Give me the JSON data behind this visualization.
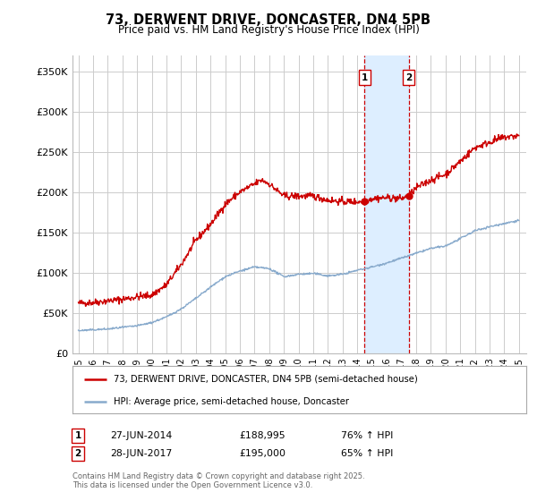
{
  "title": "73, DERWENT DRIVE, DONCASTER, DN4 5PB",
  "subtitle": "Price paid vs. HM Land Registry's House Price Index (HPI)",
  "ylabel_ticks": [
    "£0",
    "£50K",
    "£100K",
    "£150K",
    "£200K",
    "£250K",
    "£300K",
    "£350K"
  ],
  "ytick_values": [
    0,
    50000,
    100000,
    150000,
    200000,
    250000,
    300000,
    350000
  ],
  "ylim": [
    0,
    370000
  ],
  "xlim_start": 1994.6,
  "xlim_end": 2025.5,
  "legend_line1": "73, DERWENT DRIVE, DONCASTER, DN4 5PB (semi-detached house)",
  "legend_line2": "HPI: Average price, semi-detached house, Doncaster",
  "marker1_year": 2014.49,
  "marker1_price": 188995,
  "marker1_label": "1",
  "marker1_date": "27-JUN-2014",
  "marker1_pct": "76% ↑ HPI",
  "marker2_year": 2017.49,
  "marker2_price": 195000,
  "marker2_label": "2",
  "marker2_date": "28-JUN-2017",
  "marker2_pct": "65% ↑ HPI",
  "footnote": "Contains HM Land Registry data © Crown copyright and database right 2025.\nThis data is licensed under the Open Government Licence v3.0.",
  "line_color_red": "#cc0000",
  "line_color_blue": "#88aacc",
  "background_color": "#ffffff",
  "grid_color": "#cccccc",
  "shade_color": "#ddeeff",
  "marker_box_color": "#cc0000"
}
